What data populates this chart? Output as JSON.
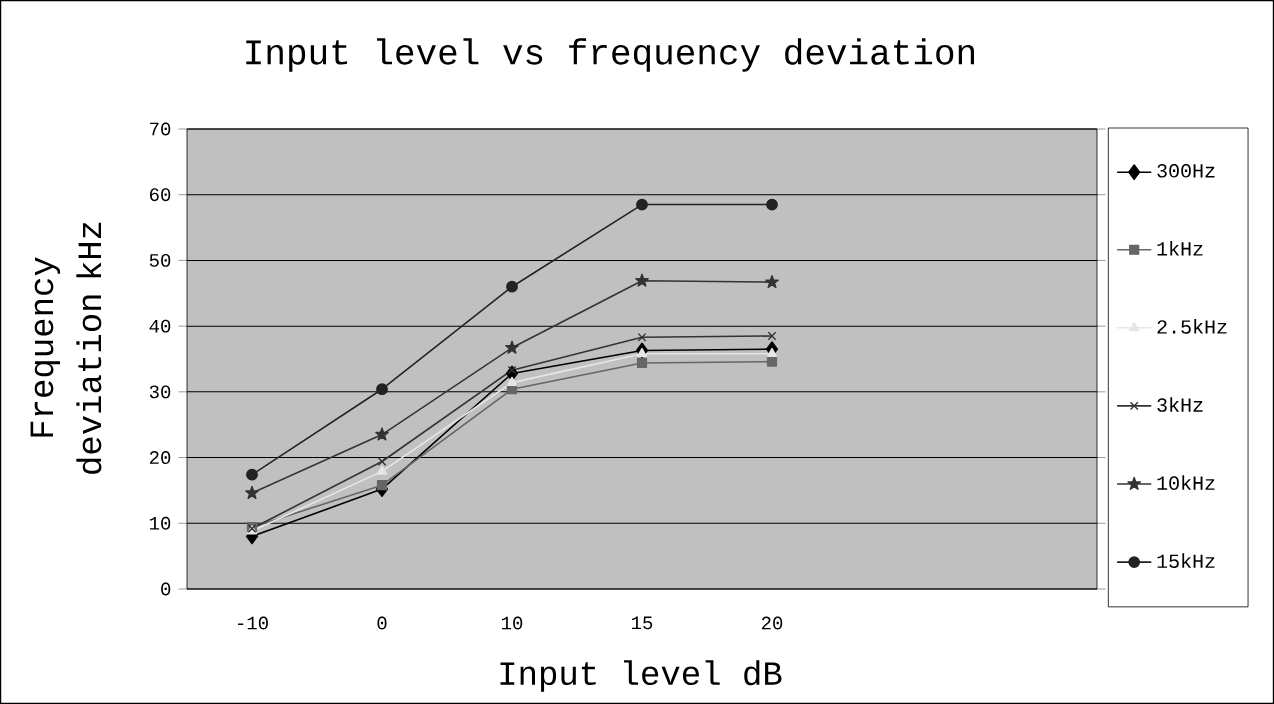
{
  "chart_data": {
    "type": "line",
    "title": "Input level vs frequency deviation",
    "xlabel": "Input level dB",
    "ylabel": "Frequency deviation kHz",
    "categories": [
      "-10",
      "0",
      "10",
      "15",
      "20",
      null,
      null
    ],
    "series": [
      {
        "name": "300Hz",
        "color": "#000000",
        "marker": "diamond",
        "values": [
          8.0,
          15.2,
          32.8,
          36.3,
          36.5,
          null,
          null
        ]
      },
      {
        "name": "1kHz",
        "color": "#666666",
        "marker": "square",
        "values": [
          9.4,
          15.8,
          30.4,
          34.4,
          34.6,
          null,
          null
        ]
      },
      {
        "name": "2.5kHz",
        "color": "#e6e6e6",
        "marker": "triangle",
        "values": [
          8.8,
          17.9,
          31.4,
          35.8,
          35.8,
          null,
          null
        ]
      },
      {
        "name": "3kHz",
        "color": "#333333",
        "marker": "cross",
        "values": [
          9.2,
          19.4,
          33.3,
          38.3,
          38.5,
          null,
          null
        ]
      },
      {
        "name": "10kHz",
        "color": "#333333",
        "marker": "star",
        "values": [
          14.6,
          23.5,
          36.7,
          46.9,
          46.7,
          null,
          null
        ]
      },
      {
        "name": "15kHz",
        "color": "#222222",
        "marker": "circle",
        "values": [
          17.4,
          30.4,
          46.0,
          58.5,
          58.5,
          null,
          null
        ]
      }
    ],
    "ylim": [
      0,
      70
    ],
    "yticks": [
      0,
      10,
      20,
      30,
      40,
      50,
      60,
      70
    ],
    "grid": "y",
    "legend": "right"
  }
}
